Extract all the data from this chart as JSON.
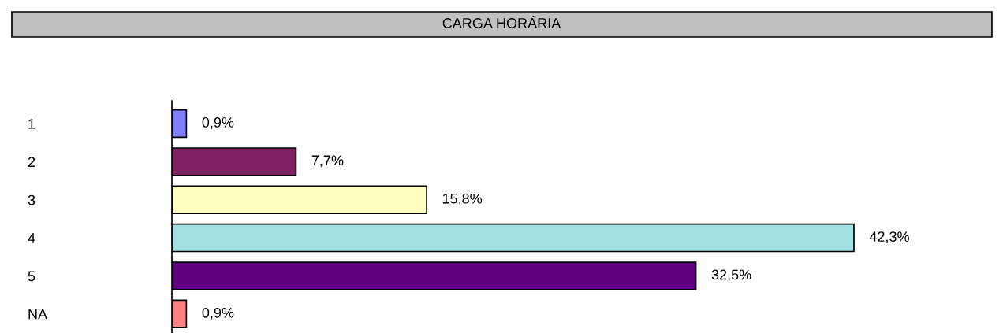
{
  "chart_data": {
    "type": "bar",
    "orientation": "horizontal",
    "title": "CARGA HORÁRIA",
    "categories": [
      "1",
      "2",
      "3",
      "4",
      "5",
      "NA"
    ],
    "values": [
      0.9,
      7.7,
      15.8,
      42.3,
      32.5,
      0.9
    ],
    "value_labels": [
      "0,9%",
      "7,7%",
      "15,8%",
      "42,3%",
      "32,5%",
      "0,9%"
    ],
    "colors": [
      "#8080ff",
      "#802060",
      "#ffffc0",
      "#a0e0e0",
      "#600080",
      "#ff8080"
    ],
    "grid": false,
    "legend": false
  }
}
